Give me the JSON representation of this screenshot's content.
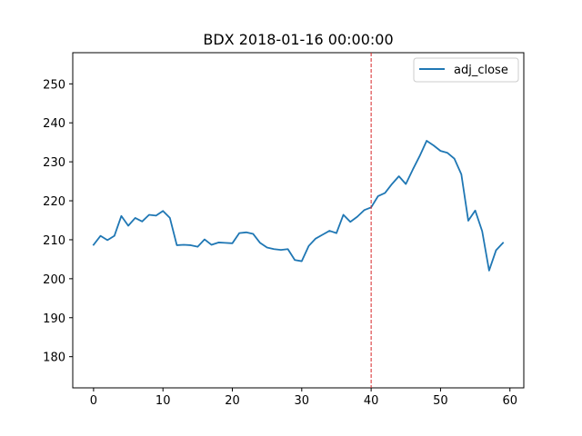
{
  "chart_data": {
    "type": "line",
    "title": "BDX 2018-01-16 00:00:00",
    "xlabel": "",
    "ylabel": "",
    "xlim": [
      -3,
      62
    ],
    "ylim": [
      172,
      258
    ],
    "x_ticks": [
      0,
      10,
      20,
      30,
      40,
      50,
      60
    ],
    "y_ticks": [
      180,
      190,
      200,
      210,
      220,
      230,
      240,
      250
    ],
    "grid": false,
    "legend_position": "top-right",
    "colors": {
      "series": "#1f77b4",
      "vline": "#d62728"
    },
    "series": [
      {
        "name": "adj_close",
        "x": [
          0,
          1,
          2,
          3,
          4,
          5,
          6,
          7,
          8,
          9,
          10,
          11,
          12,
          13,
          14,
          15,
          16,
          17,
          18,
          19,
          20,
          21,
          22,
          23,
          24,
          25,
          26,
          27,
          28,
          29,
          30,
          31,
          32,
          33,
          34,
          35,
          36,
          37,
          38,
          39,
          40,
          41,
          42,
          43,
          44,
          45,
          46,
          47,
          48,
          49,
          50,
          51,
          52,
          53,
          54,
          55,
          56,
          57,
          58,
          59
        ],
        "values": [
          208.7,
          211.0,
          209.9,
          211.0,
          216.1,
          213.6,
          215.6,
          214.7,
          216.4,
          216.2,
          217.4,
          215.6,
          208.6,
          208.7,
          208.6,
          208.2,
          210.1,
          208.7,
          209.3,
          209.2,
          209.1,
          211.7,
          211.9,
          211.5,
          209.2,
          208.0,
          207.6,
          207.4,
          207.6,
          204.8,
          204.5,
          208.4,
          210.3,
          211.3,
          212.3,
          211.7,
          216.4,
          214.6,
          215.9,
          217.6,
          218.3,
          221.2,
          222.0,
          224.3,
          226.3,
          224.3,
          228.0,
          231.5,
          235.4,
          234.2,
          232.8,
          232.3,
          230.8,
          226.8,
          214.9,
          217.5,
          212.2,
          202.1,
          207.3,
          209.2
        ]
      }
    ],
    "vline": {
      "x": 40,
      "style": "dashed"
    }
  }
}
